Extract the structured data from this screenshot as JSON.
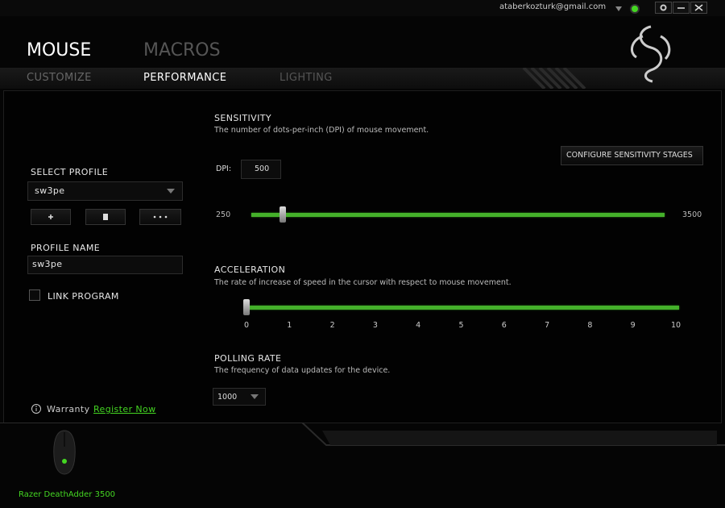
{
  "header": {
    "email": "ataberkozturk@gmail.com"
  },
  "tabs": {
    "main": [
      "MOUSE",
      "MACROS"
    ],
    "sub": [
      "CUSTOMIZE",
      "PERFORMANCE",
      "LIGHTING"
    ]
  },
  "profile": {
    "select_label": "SELECT PROFILE",
    "selected": "sw3pe",
    "name_label": "PROFILE NAME",
    "name": "sw3pe",
    "link_program": "LINK PROGRAM"
  },
  "sensitivity": {
    "title": "SENSITIVITY",
    "description": "The number of dots-per-inch (DPI) of mouse movement.",
    "configure": "CONFIGURE SENSITIVITY STAGES",
    "dpi_label": "DPI:",
    "dpi": 500,
    "min": 250,
    "max": 3500
  },
  "acceleration": {
    "title": "ACCELERATION",
    "description": "The rate of increase of speed in the cursor with respect to mouse movement.",
    "value": 0,
    "ticks": [
      0,
      1,
      2,
      3,
      4,
      5,
      6,
      7,
      8,
      9,
      10
    ]
  },
  "polling": {
    "title": "POLLING RATE",
    "description": "The frequency of data updates for the device.",
    "value": 1000
  },
  "warranty": {
    "label": "Warranty",
    "link": "Register Now"
  },
  "device": {
    "name": "Razer DeathAdder 3500"
  }
}
